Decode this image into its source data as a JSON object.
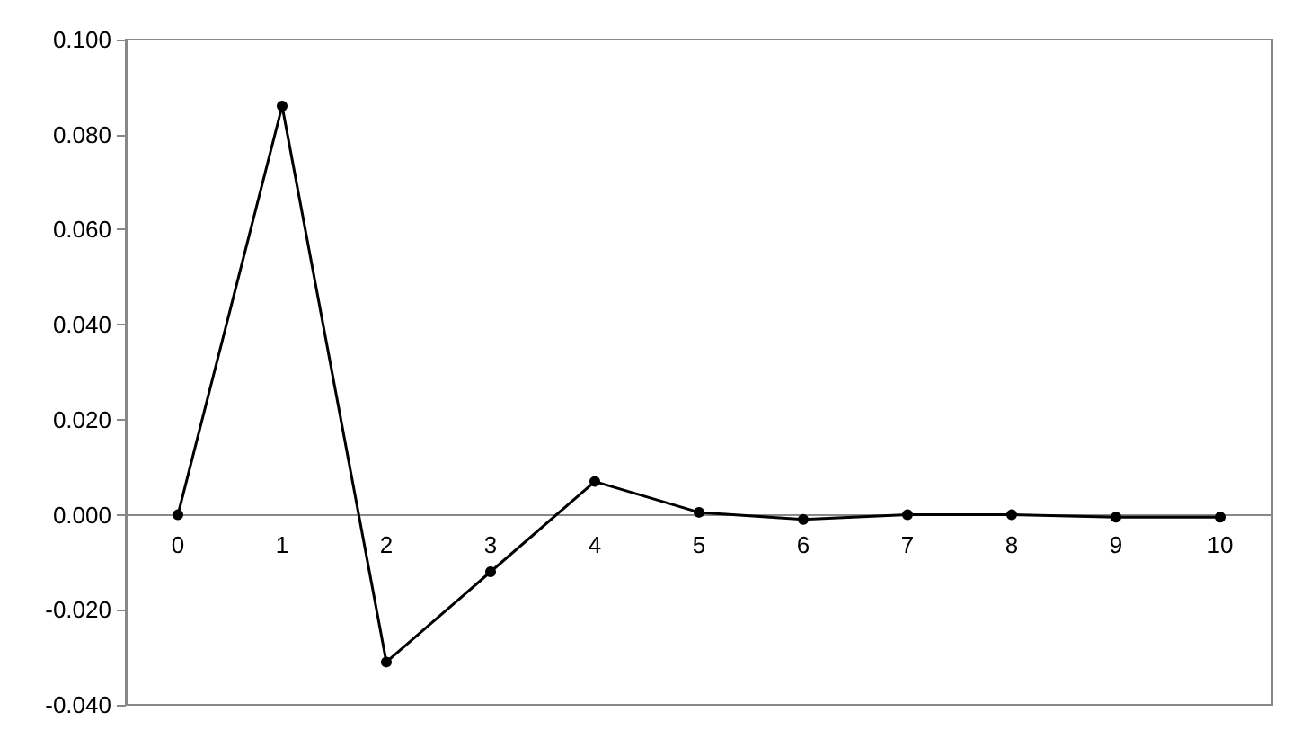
{
  "chart_data": {
    "type": "line",
    "categories": [
      "0",
      "1",
      "2",
      "3",
      "4",
      "5",
      "6",
      "7",
      "8",
      "9",
      "10"
    ],
    "series": [
      {
        "color": "#000000",
        "values": [
          0,
          0.086,
          -0.031,
          -0.012,
          0.007,
          0.0005,
          -0.001,
          0,
          0,
          -0.0005,
          -0.0005
        ]
      }
    ],
    "ylim": [
      -0.04,
      0.1
    ],
    "yticks": [
      {
        "value": -0.04,
        "label": "-0.040"
      },
      {
        "value": -0.02,
        "label": "-0.020"
      },
      {
        "value": 0,
        "label": "0.000"
      },
      {
        "value": 0.02,
        "label": "0.020"
      },
      {
        "value": 0.04,
        "label": "0.040"
      },
      {
        "value": 0.06,
        "label": "0.060"
      },
      {
        "value": 0.08,
        "label": "0.080"
      },
      {
        "value": 0.1,
        "label": "0.100"
      }
    ],
    "grid": false,
    "marker": "circle",
    "line_style": "solid"
  }
}
